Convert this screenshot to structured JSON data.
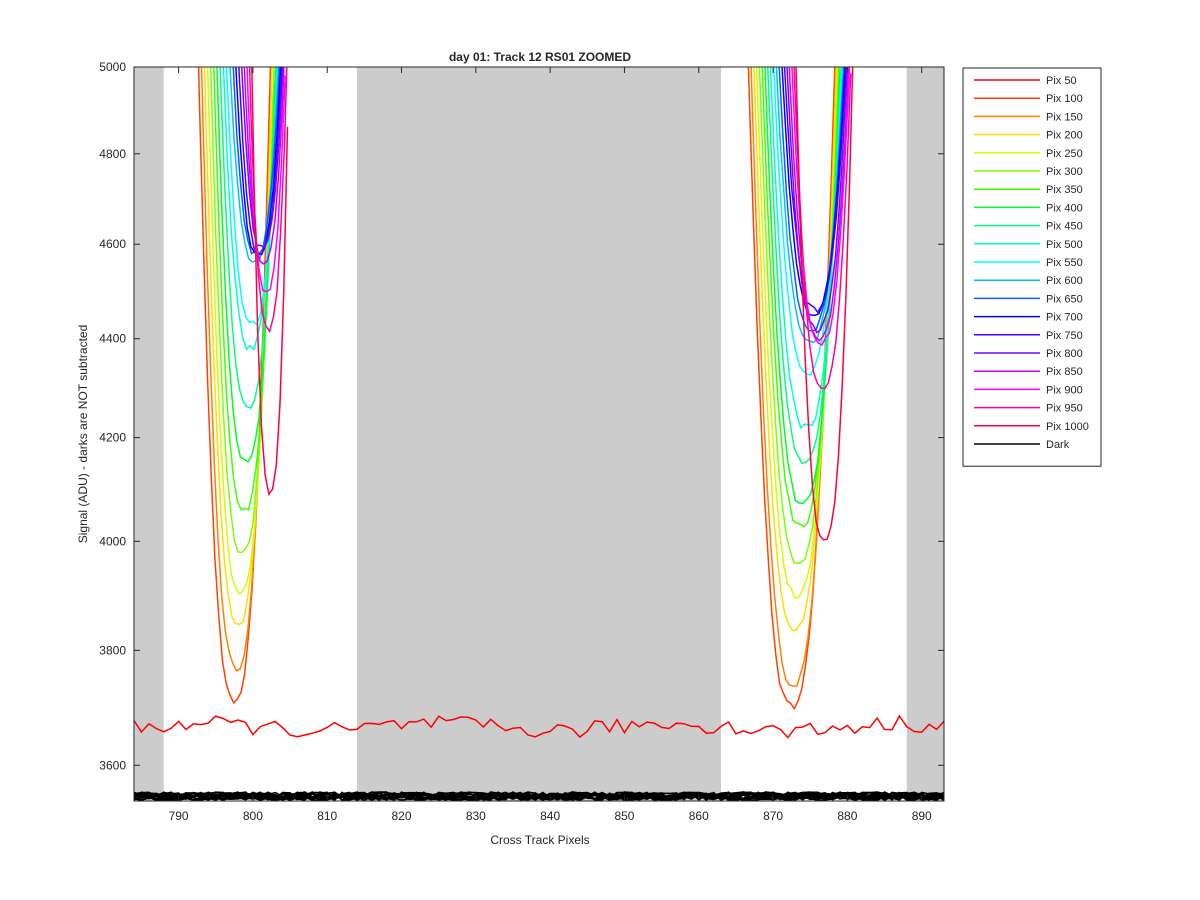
{
  "chart_data": {
    "type": "line",
    "title": "day 01: Track 12  RS01 ZOOMED",
    "xlabel": "Cross Track Pixels",
    "ylabel": "Signal (ADU) - darks are NOT subtracted",
    "xlim": [
      784,
      893
    ],
    "ylim": [
      3540,
      5000
    ],
    "y_scale": "log",
    "xticks": [
      790,
      800,
      810,
      820,
      830,
      840,
      850,
      860,
      870,
      880,
      890
    ],
    "yticks": [
      3600,
      3800,
      4000,
      4200,
      4400,
      4600,
      4800,
      5000
    ],
    "grid": false,
    "legend_position": "outside-right",
    "shaded_x_ranges": [
      [
        784,
        788
      ],
      [
        814,
        863
      ],
      [
        888,
        893
      ]
    ],
    "wells": [
      {
        "x_start": 792,
        "x_end": 805,
        "center": 801
      },
      {
        "x_start": 866,
        "x_end": 881,
        "center": 874
      }
    ],
    "series": [
      {
        "name": "Pix 50",
        "color": "#ff0000",
        "well_minima": [
          3665,
          3665
        ]
      },
      {
        "name": "Pix 100",
        "color": "#ff4000",
        "well_minima": [
          3710,
          3700
        ]
      },
      {
        "name": "Pix 150",
        "color": "#ff8000",
        "well_minima": [
          3770,
          3740
        ]
      },
      {
        "name": "Pix 200",
        "color": "#ffdd00",
        "well_minima": [
          3850,
          3840
        ]
      },
      {
        "name": "Pix 250",
        "color": "#d0ff00",
        "well_minima": [
          3905,
          3900
        ]
      },
      {
        "name": "Pix 300",
        "color": "#80ff00",
        "well_minima": [
          3980,
          3960
        ]
      },
      {
        "name": "Pix 350",
        "color": "#40ff00",
        "well_minima": [
          4060,
          4030
        ]
      },
      {
        "name": "Pix 400",
        "color": "#00ff20",
        "well_minima": [
          4150,
          4070
        ]
      },
      {
        "name": "Pix 450",
        "color": "#00ff80",
        "well_minima": [
          4260,
          4150
        ]
      },
      {
        "name": "Pix 500",
        "color": "#00ffd0",
        "well_minima": [
          4380,
          4220
        ]
      },
      {
        "name": "Pix 550",
        "color": "#00ffff",
        "well_minima": [
          4430,
          4330
        ]
      },
      {
        "name": "Pix 600",
        "color": "#00c0ff",
        "well_minima": [
          4560,
          4390
        ]
      },
      {
        "name": "Pix 650",
        "color": "#0060ff",
        "well_minima": [
          4580,
          4420
        ]
      },
      {
        "name": "Pix 700",
        "color": "#0000ff",
        "well_minima": [
          4575,
          4450
        ]
      },
      {
        "name": "Pix 750",
        "color": "#4000ff",
        "well_minima": [
          4580,
          4460
        ]
      },
      {
        "name": "Pix 800",
        "color": "#8000ff",
        "well_minima": [
          4590,
          4420
        ]
      },
      {
        "name": "Pix 850",
        "color": "#c000ff",
        "well_minima": [
          4560,
          4400
        ]
      },
      {
        "name": "Pix 900",
        "color": "#ff00ff",
        "well_minima": [
          4500,
          4390
        ]
      },
      {
        "name": "Pix 950",
        "color": "#ff00a0",
        "well_minima": [
          4420,
          4300
        ]
      },
      {
        "name": "Pix 1000",
        "color": "#ff0040",
        "well_minima": [
          4090,
          4000
        ]
      },
      {
        "name": "Dark",
        "color": "#000000",
        "level": 3548
      }
    ]
  }
}
